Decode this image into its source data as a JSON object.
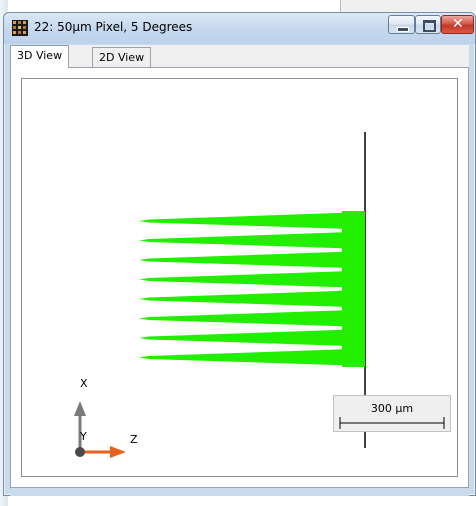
{
  "window": {
    "title": "22: 50µm Pixel, 5 Degrees",
    "icon": "app-grid-icon",
    "controls": {
      "minimize": "minimize-icon",
      "maximize": "maximize-icon",
      "close": "close-icon"
    }
  },
  "tabs": [
    {
      "label": "3D View",
      "active": true
    },
    {
      "label": "2D View",
      "active": false
    }
  ],
  "view": {
    "axes": {
      "vertical": "X",
      "horizontal": "Z",
      "out_of_plane": "Y"
    },
    "scale_bar": {
      "label": "300 µm"
    },
    "colors": {
      "rays": "#22ee00",
      "detector": "#000000",
      "x_axis": "#707070",
      "z_axis": "#e8601c"
    },
    "ray_bundle": {
      "count": 8
    }
  }
}
